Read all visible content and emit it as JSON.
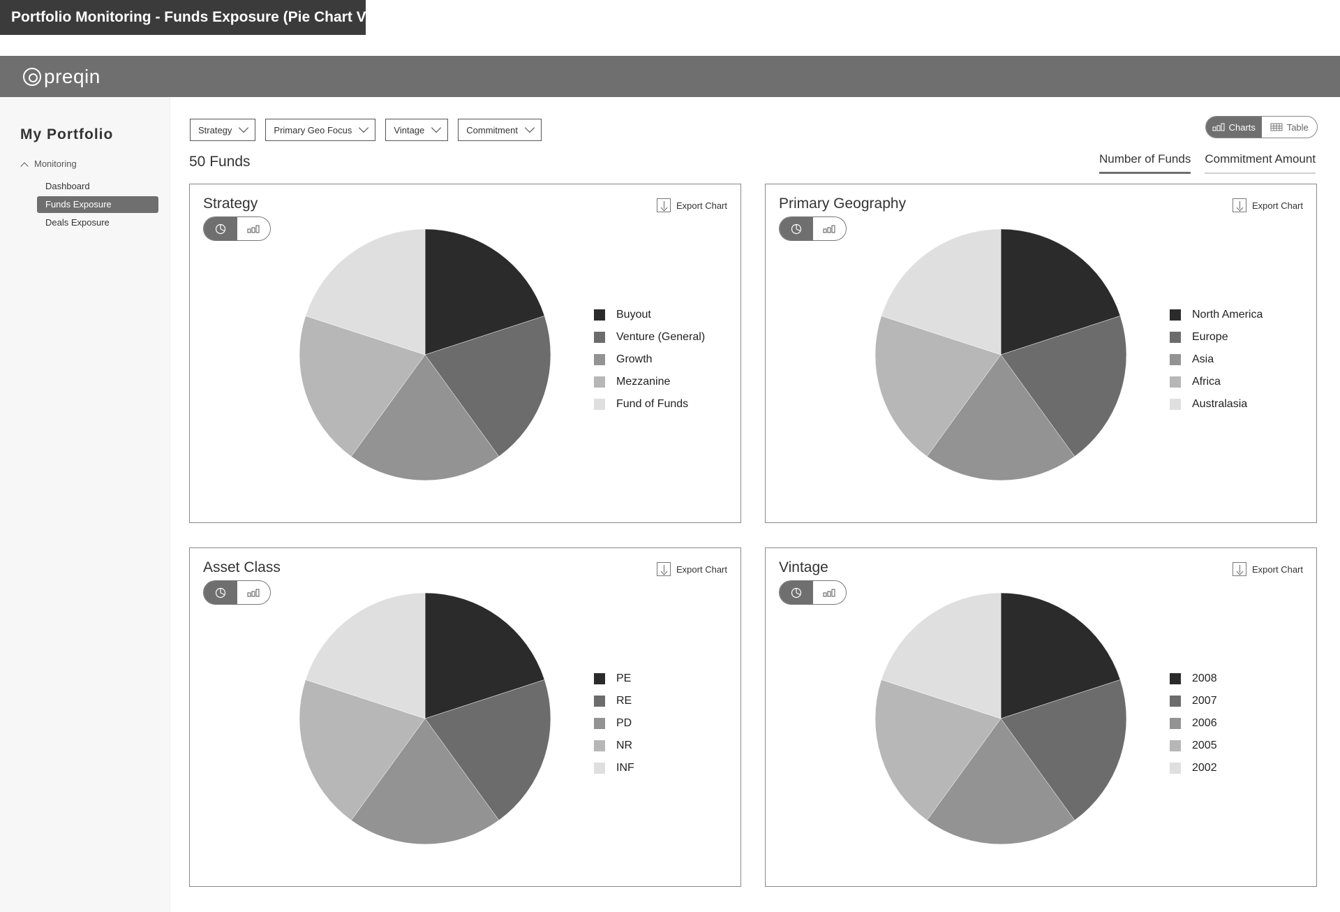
{
  "page_title": "Portfolio Monitoring - Funds Exposure (Pie Chart View)",
  "logo": {
    "text": "preqin"
  },
  "sidebar": {
    "title": "My Portfolio",
    "group": "Monitoring",
    "items": [
      {
        "label": "Dashboard",
        "active": false
      },
      {
        "label": "Funds Exposure",
        "active": true
      },
      {
        "label": "Deals Exposure",
        "active": false
      }
    ]
  },
  "filters": [
    "Strategy",
    "Primary Geo Focus",
    "Vintage",
    "Commitment"
  ],
  "fund_count": "50 Funds",
  "view_toggle": {
    "charts": "Charts",
    "table": "Table",
    "selected": "Charts"
  },
  "metric_tabs": {
    "funds": "Number of Funds",
    "commitment": "Commitment Amount",
    "selected": "Number of Funds"
  },
  "export_label": "Export Chart",
  "colors": [
    "#2b2b2b",
    "#6c6c6c",
    "#939393",
    "#b7b7b7",
    "#dfdfdf"
  ],
  "panels": [
    {
      "title": "Strategy",
      "categories": [
        "Buyout",
        "Venture (General)",
        "Growth",
        "Mezzanine",
        "Fund of Funds"
      ]
    },
    {
      "title": "Primary Geography",
      "categories": [
        "North America",
        "Europe",
        "Asia",
        "Africa",
        "Australasia"
      ]
    },
    {
      "title": "Asset Class",
      "categories": [
        "PE",
        "RE",
        "PD",
        "NR",
        "INF"
      ]
    },
    {
      "title": "Vintage",
      "categories": [
        "2008",
        "2007",
        "2006",
        "2005",
        "2002"
      ]
    }
  ],
  "chart_data": [
    {
      "type": "pie",
      "title": "Strategy",
      "categories": [
        "Buyout",
        "Venture (General)",
        "Growth",
        "Mezzanine",
        "Fund of Funds"
      ],
      "values": [
        20,
        20,
        20,
        20,
        20
      ]
    },
    {
      "type": "pie",
      "title": "Primary Geography",
      "categories": [
        "North America",
        "Europe",
        "Asia",
        "Africa",
        "Australasia"
      ],
      "values": [
        20,
        20,
        20,
        20,
        20
      ]
    },
    {
      "type": "pie",
      "title": "Asset Class",
      "categories": [
        "PE",
        "RE",
        "PD",
        "NR",
        "INF"
      ],
      "values": [
        20,
        20,
        20,
        20,
        20
      ]
    },
    {
      "type": "pie",
      "title": "Vintage",
      "categories": [
        "2008",
        "2007",
        "2006",
        "2005",
        "2002"
      ],
      "values": [
        20,
        20,
        20,
        20,
        20
      ]
    }
  ]
}
